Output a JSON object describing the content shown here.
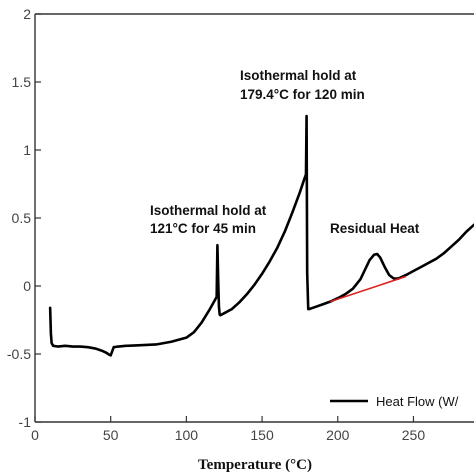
{
  "chart_data": {
    "type": "line",
    "title": "",
    "xlabel": "Temperature (°C)",
    "ylabel": "",
    "xlim": [
      0,
      290
    ],
    "ylim": [
      -1,
      2
    ],
    "x_ticks": [
      "0",
      "50",
      "100",
      "150",
      "200",
      "250"
    ],
    "x_tick_values": [
      0,
      50,
      100,
      150,
      200,
      250
    ],
    "y_ticks": [
      "-1",
      "-0.5",
      "0",
      "0.5",
      "1",
      "1.5",
      "2"
    ],
    "y_tick_values": [
      -1,
      -0.5,
      0,
      0.5,
      1,
      1.5,
      2
    ],
    "grid": false,
    "legend": {
      "position": "bottom-right",
      "label": "Heat Flow (W/"
    },
    "colors": {
      "series": "#000000",
      "baseline": "#e02020",
      "axis": "#333333"
    },
    "annotations": [
      {
        "line1": "Isothermal hold at",
        "line2": "121°C for 45 min"
      },
      {
        "line1": "Isothermal hold at",
        "line2": "179.4°C for 120 min"
      },
      {
        "line1": "Residual Heat"
      }
    ],
    "series": [
      {
        "name": "Heat Flow (W/",
        "x": [
          10,
          10.5,
          11,
          12,
          15,
          20,
          25,
          30,
          35,
          40,
          44,
          47,
          49,
          50,
          51,
          52,
          55,
          60,
          70,
          80,
          90,
          100,
          105,
          110,
          115,
          118,
          120,
          120.5,
          121,
          121.5,
          122,
          122.5,
          125,
          130,
          135,
          140,
          145,
          150,
          155,
          160,
          165,
          170,
          175,
          178,
          179,
          179.4,
          179.8,
          180.5,
          181,
          185,
          190,
          195,
          200,
          205,
          210,
          215,
          218,
          221,
          224,
          226,
          228,
          231,
          234,
          237,
          240,
          245,
          250,
          255,
          260,
          265,
          270,
          275,
          280,
          285,
          290
        ],
        "y": [
          -0.16,
          -0.35,
          -0.42,
          -0.44,
          -0.445,
          -0.44,
          -0.445,
          -0.445,
          -0.45,
          -0.46,
          -0.475,
          -0.49,
          -0.505,
          -0.51,
          -0.48,
          -0.45,
          -0.445,
          -0.44,
          -0.435,
          -0.43,
          -0.41,
          -0.38,
          -0.34,
          -0.27,
          -0.18,
          -0.12,
          -0.08,
          0.3,
          0.05,
          -0.15,
          -0.21,
          -0.215,
          -0.2,
          -0.17,
          -0.12,
          -0.06,
          0.01,
          0.09,
          0.18,
          0.28,
          0.4,
          0.54,
          0.69,
          0.79,
          0.82,
          1.25,
          0.1,
          -0.17,
          -0.17,
          -0.155,
          -0.135,
          -0.115,
          -0.09,
          -0.06,
          -0.02,
          0.05,
          0.12,
          0.19,
          0.23,
          0.235,
          0.21,
          0.14,
          0.08,
          0.055,
          0.055,
          0.08,
          0.11,
          0.14,
          0.17,
          0.2,
          0.24,
          0.29,
          0.34,
          0.4,
          0.45
        ]
      }
    ],
    "baseline": {
      "x": [
        195,
        245
      ],
      "y": [
        -0.115,
        0.07
      ]
    }
  }
}
